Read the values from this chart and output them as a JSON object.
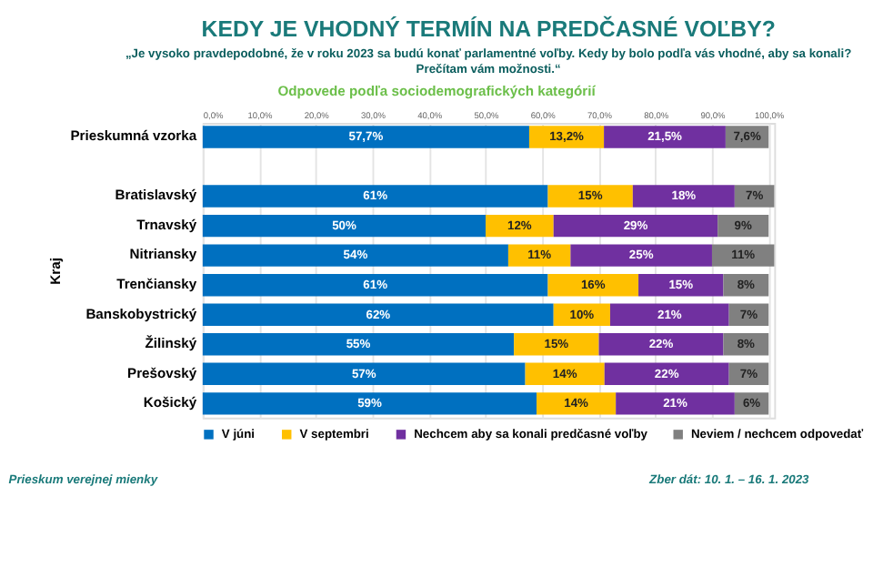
{
  "chart_data": {
    "type": "bar",
    "orientation": "horizontal",
    "stacked": true,
    "title": "KEDY JE VHODNÝ TERMÍN NA PREDČASNÉ VOĽBY?",
    "subtitle": "„Je vysoko pravdepodobné, že v roku 2023 sa budú konať parlamentné voľby. Kedy by bolo podľa vás vhodné, aby sa konali?\nPrečítam vám možnosti.“",
    "ylabel": "Kraj",
    "categories": [
      "Prieskumná vzorka",
      null,
      "Bratislavský",
      "Trnavský",
      "Nitriansky",
      "Trenčiansky",
      "Banskobystrický",
      "Žilinský",
      "Prešovský",
      "Košický"
    ],
    "series": [
      {
        "name": "V júni",
        "color": "#0070c0",
        "values": [
          57.7,
          null,
          61,
          50,
          54,
          61,
          62,
          55,
          57,
          59
        ],
        "value_labels": [
          "57,7%",
          null,
          "61%",
          "50%",
          "54%",
          "61%",
          "62%",
          "55%",
          "57%",
          "59%"
        ]
      },
      {
        "name": "V septembri",
        "color": "#ffc000",
        "values": [
          13.2,
          null,
          15,
          12,
          11,
          16,
          10,
          15,
          14,
          14
        ],
        "value_labels": [
          "13,2%",
          null,
          "15%",
          "12%",
          "11%",
          "16%",
          "10%",
          "15%",
          "14%",
          "14%"
        ]
      },
      {
        "name": "Nechcem aby sa konali predčasné voľby",
        "color": "#7030a0",
        "values": [
          21.5,
          null,
          18,
          29,
          25,
          15,
          21,
          22,
          22,
          21
        ],
        "value_labels": [
          "21,5%",
          null,
          "18%",
          "29%",
          "25%",
          "15%",
          "21%",
          "22%",
          "22%",
          "21%"
        ]
      },
      {
        "name": "Neviem / nechcem odpovedať",
        "color": "#808080",
        "values": [
          7.6,
          null,
          7,
          9,
          11,
          8,
          7,
          8,
          7,
          6
        ],
        "value_labels": [
          "7,6%",
          null,
          "7%",
          "9%",
          "11%",
          "8%",
          "7%",
          "8%",
          "7%",
          "6%"
        ]
      }
    ],
    "xlim": [
      0,
      101
    ],
    "xticks": [
      {
        "value": 0,
        "label": "0,0%"
      },
      {
        "value": 10,
        "label": "10,0%"
      },
      {
        "value": 20,
        "label": "20,0%"
      },
      {
        "value": 30,
        "label": "30,0%"
      },
      {
        "value": 40,
        "label": "40,0%"
      },
      {
        "value": 50,
        "label": "50,0%"
      },
      {
        "value": 60,
        "label": "60,0%"
      },
      {
        "value": 70,
        "label": "70,0%"
      },
      {
        "value": 80,
        "label": "80,0%"
      },
      {
        "value": 90,
        "label": "90,0%"
      },
      {
        "value": 100,
        "label": "100,0%"
      }
    ],
    "grid": "x",
    "legend": "bottom",
    "annotations": [
      "Odpovede podľa sociodemografických kategórií",
      "Prieskum verejnej mienky",
      "Zber dát: 10. 1. – 16. 1. 2023"
    ]
  }
}
